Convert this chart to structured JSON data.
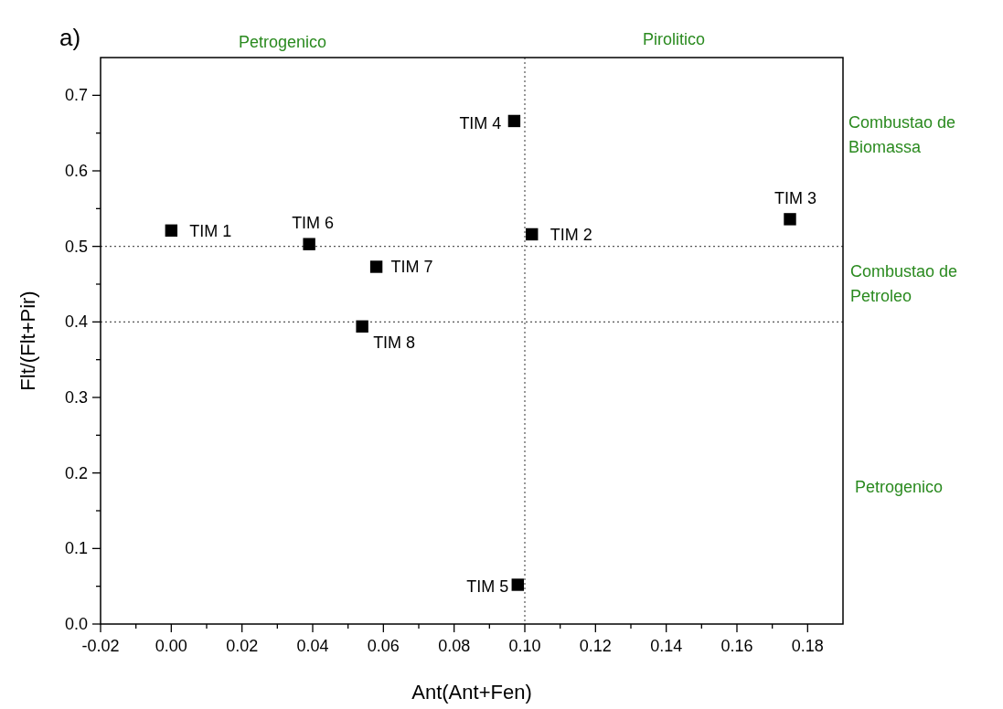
{
  "chart_data": {
    "type": "scatter",
    "xlabel": "Ant(Ant+Fen)",
    "ylabel": "Flt/(Flt+Pir)",
    "xlim": [
      -0.02,
      0.19
    ],
    "ylim": [
      0,
      0.75
    ],
    "xticks": [
      -0.02,
      {
        "value": -0.01,
        "label": null
      },
      {
        "value": 0,
        "label": "0.00"
      },
      {
        "value": 0.01,
        "label": null
      },
      0.02,
      {
        "value": 0.03,
        "label": null
      },
      0.04,
      {
        "value": 0.05,
        "label": null
      },
      0.06,
      {
        "value": 0.07,
        "label": null
      },
      0.08,
      {
        "value": 0.09,
        "label": null
      },
      {
        "value": 0.1,
        "label": "0.10"
      },
      {
        "value": 0.11,
        "label": null
      },
      0.12,
      {
        "value": 0.13,
        "label": null
      },
      0.14,
      {
        "value": 0.15,
        "label": null
      },
      0.16,
      {
        "value": 0.17,
        "label": null
      },
      0.18
    ],
    "yticks": [
      {
        "value": 0,
        "label": "0.0"
      },
      {
        "value": 0.05,
        "label": null
      },
      0.1,
      {
        "value": 0.15,
        "label": null
      },
      0.2,
      {
        "value": 0.25,
        "label": null
      },
      0.3,
      {
        "value": 0.35,
        "label": null
      },
      0.4,
      {
        "value": 0.45,
        "label": null
      },
      0.5,
      {
        "value": 0.55,
        "label": null
      },
      0.6,
      {
        "value": 0.65,
        "label": null
      },
      0.7
    ],
    "marker": "square",
    "grid": false,
    "series": [
      {
        "color": "#000000",
        "x": [
          0,
          0.102,
          0.175,
          0.097,
          0.098,
          0.039,
          0.058,
          0.054
        ],
        "values": [
          0.521,
          0.516,
          0.536,
          0.666,
          0.052,
          0.503,
          0.473,
          0.394
        ]
      }
    ],
    "ref_lines": [
      {
        "axis": "x",
        "value": 0.1,
        "line_style": "dotted",
        "color": "#555555"
      },
      {
        "axis": "y",
        "value": 0.5,
        "line_style": "dotted",
        "color": "#555555"
      },
      {
        "axis": "y",
        "value": 0.4,
        "line_style": "dotted",
        "color": "#555555"
      }
    ],
    "annotations": [
      "a)",
      "Petrogenico",
      "Pirolitico",
      "Combustao de Biomassa",
      "Combustao de Petroleo",
      "Petrogenico",
      {
        "text": "TIM 1",
        "x": 0,
        "y": 0.521
      },
      {
        "text": "TIM 2",
        "x": 0.102,
        "y": 0.516
      },
      {
        "text": "TIM 3",
        "x": 0.175,
        "y": 0.536
      },
      {
        "text": "TIM 4",
        "x": 0.097,
        "y": 0.666
      },
      {
        "text": "TIM 5",
        "x": 0.098,
        "y": 0.052
      },
      {
        "text": "TIM 6",
        "x": 0.039,
        "y": 0.503
      },
      {
        "text": "TIM 7",
        "x": 0.058,
        "y": 0.473
      },
      {
        "text": "TIM 8",
        "x": 0.054,
        "y": 0.394
      }
    ]
  }
}
